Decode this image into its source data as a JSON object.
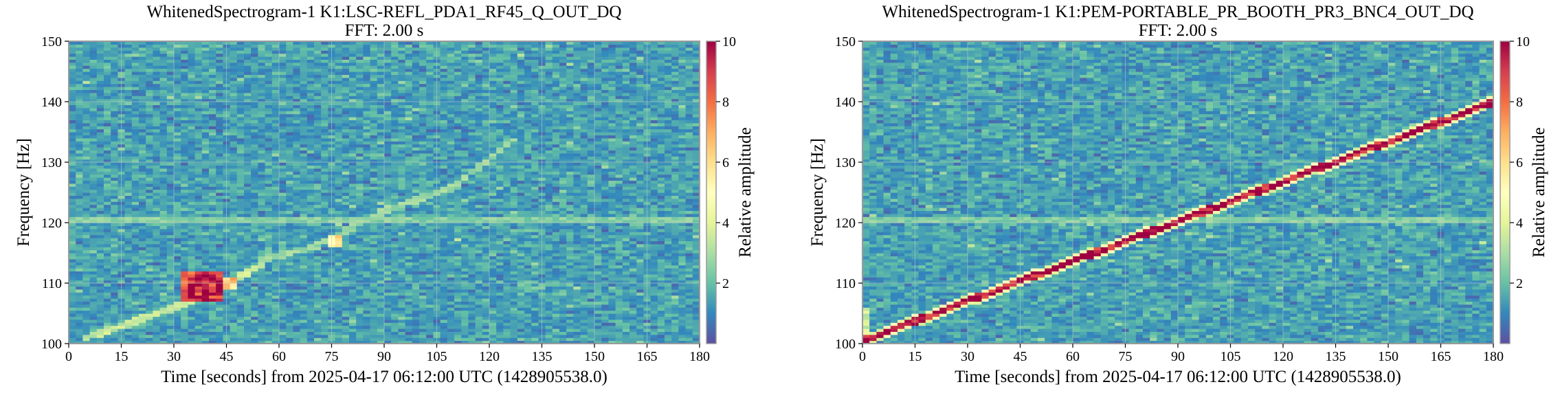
{
  "chart_data": [
    {
      "type": "heatmap",
      "title": "WhitenedSpectrogram-1 K1:LSC-REFL_PDA1_RF45_Q_OUT_DQ",
      "subtitle": "FFT: 2.00 s",
      "xlabel": "Time [seconds] from 2025-04-17 06:12:00 UTC (1428905538.0)",
      "ylabel": "Frequency [Hz]",
      "xlim": [
        0,
        180
      ],
      "ylim": [
        100,
        150
      ],
      "xticks": [
        0,
        15,
        30,
        45,
        60,
        75,
        90,
        105,
        120,
        135,
        150,
        165,
        180
      ],
      "yticks": [
        100,
        110,
        120,
        130,
        140,
        150
      ],
      "colorbar": {
        "label": "Relative amplitude",
        "range": [
          0,
          10
        ],
        "ticks": [
          2,
          4,
          6,
          8,
          10
        ],
        "colormap": "Spectral_r"
      },
      "grid": true,
      "features": [
        {
          "kind": "chirp-track",
          "t": [
            5,
            20,
            35,
            45,
            55
          ],
          "f": [
            101,
            104,
            107,
            110,
            113
          ],
          "amplitude": 3.5
        },
        {
          "kind": "blob",
          "t_range": [
            32,
            44
          ],
          "f_range": [
            107,
            112
          ],
          "amplitude": 10
        },
        {
          "kind": "blob",
          "t_range": [
            44,
            48
          ],
          "f_range": [
            109,
            111
          ],
          "amplitude": 7
        },
        {
          "kind": "blob",
          "t_range": [
            74,
            78
          ],
          "f_range": [
            116,
            118
          ],
          "amplitude": 6
        },
        {
          "kind": "chirp-track",
          "t": [
            55,
            70,
            90,
            110,
            125
          ],
          "f": [
            114,
            116,
            122,
            126,
            133
          ],
          "amplitude": 2.8
        },
        {
          "kind": "line",
          "f": 120.5,
          "amplitude": 2.5
        }
      ]
    },
    {
      "type": "heatmap",
      "title": "WhitenedSpectrogram-1 K1:PEM-PORTABLE_PR_BOOTH_PR3_BNC4_OUT_DQ",
      "subtitle": "FFT: 2.00 s",
      "xlabel": "Time [seconds] from 2025-04-17 06:12:00 UTC (1428905538.0)",
      "ylabel": "Frequency [Hz]",
      "xlim": [
        0,
        180
      ],
      "ylim": [
        100,
        150
      ],
      "xticks": [
        0,
        15,
        30,
        45,
        60,
        75,
        90,
        105,
        120,
        135,
        150,
        165,
        180
      ],
      "yticks": [
        100,
        110,
        120,
        130,
        140,
        150
      ],
      "colorbar": {
        "label": "Relative amplitude",
        "range": [
          0,
          10
        ],
        "ticks": [
          2,
          4,
          6,
          8,
          10
        ],
        "colormap": "Spectral_r"
      },
      "grid": true,
      "features": [
        {
          "kind": "chirp-track",
          "t": [
            0,
            180
          ],
          "f": [
            100.5,
            140
          ],
          "amplitude": 10
        },
        {
          "kind": "blob",
          "t_range": [
            0,
            1
          ],
          "f_range": [
            100,
            106
          ],
          "amplitude": 4
        },
        {
          "kind": "line",
          "f": 120.5,
          "amplitude": 2.5
        }
      ]
    }
  ]
}
